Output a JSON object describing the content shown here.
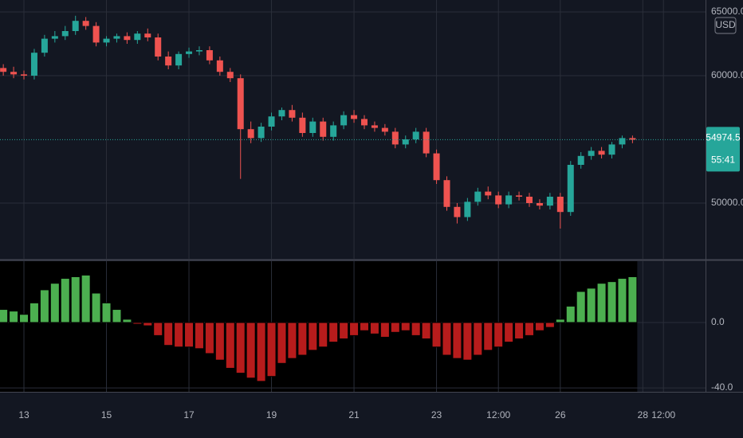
{
  "chart_data": [
    {
      "type": "candlestick",
      "currency": "USD",
      "up_color": "#26a69a",
      "down_color": "#ef5350",
      "x": [
        12.5,
        12.75,
        13,
        13.25,
        13.5,
        13.75,
        14,
        14.25,
        14.5,
        14.75,
        15,
        15.25,
        15.5,
        15.75,
        16,
        16.25,
        16.5,
        16.75,
        17,
        17.25,
        17.5,
        17.75,
        18,
        18.25,
        18.5,
        18.75,
        19,
        19.25,
        19.5,
        19.75,
        20,
        20.25,
        20.5,
        20.75,
        21,
        21.25,
        21.5,
        21.75,
        22,
        22.25,
        22.5,
        22.75,
        23,
        23.25,
        23.5,
        23.75,
        24,
        24.25,
        24.5,
        24.75,
        25,
        25.25,
        25.5,
        25.75,
        26,
        26.25,
        26.5,
        26.75,
        27,
        27.25,
        27.5,
        27.75
      ],
      "open": [
        60600,
        60300,
        60100,
        60000,
        61800,
        62900,
        63100,
        63500,
        64300,
        63900,
        62600,
        62900,
        63100,
        62800,
        63300,
        63000,
        61500,
        60800,
        61700,
        61900,
        62000,
        61200,
        60300,
        59800,
        55800,
        55100,
        56000,
        56800,
        57300,
        56700,
        55500,
        56400,
        55200,
        56100,
        56900,
        56600,
        56100,
        55900,
        55600,
        54600,
        55000,
        55600,
        53900,
        51800,
        49700,
        48900,
        50100,
        50900,
        50600,
        49900,
        50600,
        50500,
        50000,
        49800,
        50500,
        49300,
        53000,
        53700,
        54100,
        53800,
        54600,
        55100
      ],
      "high": [
        60900,
        60700,
        60400,
        62100,
        63200,
        63500,
        63900,
        64700,
        64600,
        64200,
        63100,
        63300,
        63400,
        63500,
        63700,
        63300,
        61900,
        61900,
        62200,
        62300,
        62300,
        61500,
        60600,
        60100,
        56400,
        56300,
        57100,
        57500,
        57700,
        57100,
        56700,
        56700,
        56400,
        57200,
        57300,
        56900,
        56400,
        56200,
        55900,
        55300,
        55900,
        55900,
        54200,
        52100,
        50000,
        50400,
        51200,
        51300,
        50900,
        50900,
        50900,
        50800,
        50300,
        50800,
        50800,
        53300,
        54000,
        54400,
        54400,
        54800,
        55300,
        55300
      ],
      "low": [
        60000,
        59800,
        59700,
        59700,
        61500,
        62600,
        62800,
        63200,
        63600,
        62300,
        62300,
        62600,
        62500,
        62500,
        62700,
        61200,
        60500,
        60500,
        61400,
        61600,
        60900,
        60000,
        59500,
        51900,
        54700,
        54800,
        55700,
        56500,
        56400,
        55200,
        55200,
        54900,
        54900,
        55800,
        56300,
        55800,
        55600,
        55300,
        54300,
        54300,
        54700,
        53600,
        51500,
        49400,
        48400,
        48600,
        49800,
        50300,
        49600,
        49600,
        50200,
        49700,
        49500,
        49500,
        48000,
        49000,
        52700,
        53400,
        53500,
        53500,
        54300,
        54700
      ],
      "close": [
        60300,
        60100,
        60000,
        61800,
        62900,
        63100,
        63500,
        64300,
        63900,
        62600,
        62900,
        63100,
        62800,
        63300,
        63000,
        61500,
        60800,
        61700,
        61900,
        62000,
        61200,
        60300,
        59800,
        55800,
        55100,
        56000,
        56800,
        57300,
        56700,
        55500,
        56400,
        55200,
        56100,
        56900,
        56600,
        56100,
        55900,
        55600,
        54600,
        55000,
        55600,
        53900,
        51800,
        49700,
        48900,
        50100,
        50900,
        50600,
        49900,
        50600,
        50500,
        50000,
        49800,
        50500,
        49300,
        53000,
        53700,
        54100,
        53800,
        54600,
        55100,
        54974.5
      ],
      "ylim": [
        45625,
        65937.5
      ],
      "yticks": [
        {
          "value": 50000,
          "label": "50000.0"
        },
        {
          "value": 60000,
          "label": "60000.0"
        },
        {
          "value": 65000,
          "label": "65000.0"
        }
      ],
      "last_price": 54974.5,
      "countdown": "55:41",
      "grid": true
    },
    {
      "type": "bar",
      "positive_color": "#4caf50",
      "negative_color": "#b71c1c",
      "x": [
        12.5,
        12.75,
        13,
        13.25,
        13.5,
        13.75,
        14,
        14.25,
        14.5,
        14.75,
        15,
        15.25,
        15.5,
        15.75,
        16,
        16.25,
        16.5,
        16.75,
        17,
        17.25,
        17.5,
        17.75,
        18,
        18.25,
        18.5,
        18.75,
        19,
        19.25,
        19.5,
        19.75,
        20,
        20.25,
        20.5,
        20.75,
        21,
        21.25,
        21.5,
        21.75,
        22,
        22.25,
        22.5,
        22.75,
        23,
        23.25,
        23.5,
        23.75,
        24,
        24.25,
        24.5,
        24.75,
        25,
        25.25,
        25.5,
        25.75,
        26,
        26.25,
        26.5,
        26.75,
        27,
        27.25,
        27.5,
        27.75
      ],
      "values": [
        8,
        7,
        5,
        12,
        20,
        24,
        27,
        28,
        29,
        18,
        12,
        8,
        2,
        -1,
        -2,
        -8,
        -14,
        -15,
        -15,
        -16,
        -19,
        -23,
        -28,
        -31,
        -34,
        -36,
        -33,
        -25,
        -22,
        -20,
        -17,
        -15,
        -12,
        -10,
        -8,
        -5,
        -7,
        -9,
        -6,
        -5,
        -8,
        -10,
        -15,
        -20,
        -22,
        -23,
        -20,
        -17,
        -15,
        -12,
        -10,
        -8,
        -5,
        -3,
        2,
        10,
        19,
        21,
        24,
        25,
        27,
        28
      ],
      "ylim": [
        -42.4,
        37.5
      ],
      "yticks": [
        {
          "value": 0,
          "label": "0.0"
        },
        {
          "value": -40,
          "label": "-40.0"
        }
      ],
      "xlim": [
        12.42,
        29.52
      ],
      "xticks": [
        13,
        15,
        17,
        19,
        21,
        23,
        {
          "value": 24.5,
          "label": "12:00"
        },
        26,
        28,
        {
          "value": 28.5,
          "label": "12:00"
        }
      ],
      "grid": true
    }
  ]
}
